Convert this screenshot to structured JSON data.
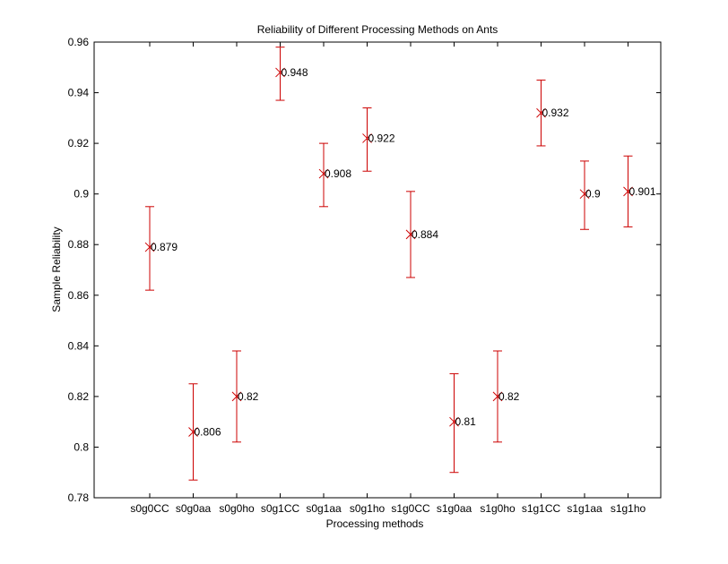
{
  "colors": {
    "marker": "#cc0000",
    "axis": "#000000",
    "background": "#ffffff"
  },
  "chart_data": {
    "type": "scatter",
    "title": "Reliability of Different Processing Methods on Ants",
    "xlabel": "Processing methods",
    "ylabel": "Sample Reliability",
    "ylim": [
      0.78,
      0.96
    ],
    "yticks": [
      0.78,
      0.8,
      0.82,
      0.84,
      0.86,
      0.88,
      0.9,
      0.92,
      0.94,
      0.96
    ],
    "ytick_labels": [
      "0.78",
      "0.8",
      "0.82",
      "0.84",
      "0.86",
      "0.88",
      "0.9",
      "0.92",
      "0.94",
      "0.96"
    ],
    "grid": false,
    "legend": "none",
    "marker": "x",
    "categories": [
      "s0g0CC",
      "s0g0aa",
      "s0g0ho",
      "s0g1CC",
      "s0g1aa",
      "s0g1ho",
      "s1g0CC",
      "s1g0aa",
      "s1g0ho",
      "s1g1CC",
      "s1g1aa",
      "s1g1ho"
    ],
    "values": [
      0.879,
      0.806,
      0.82,
      0.948,
      0.908,
      0.922,
      0.884,
      0.81,
      0.82,
      0.932,
      0.9,
      0.901
    ],
    "value_labels": [
      "0.879",
      "0.806",
      "0.82",
      "0.948",
      "0.908",
      "0.922",
      "0.884",
      "0.81",
      "0.82",
      "0.932",
      "0.9",
      "0.901"
    ],
    "error_lower": [
      0.862,
      0.787,
      0.802,
      0.937,
      0.895,
      0.909,
      0.867,
      0.79,
      0.802,
      0.919,
      0.886,
      0.887
    ],
    "error_upper": [
      0.895,
      0.825,
      0.838,
      0.958,
      0.92,
      0.934,
      0.901,
      0.829,
      0.838,
      0.945,
      0.913,
      0.915
    ]
  }
}
